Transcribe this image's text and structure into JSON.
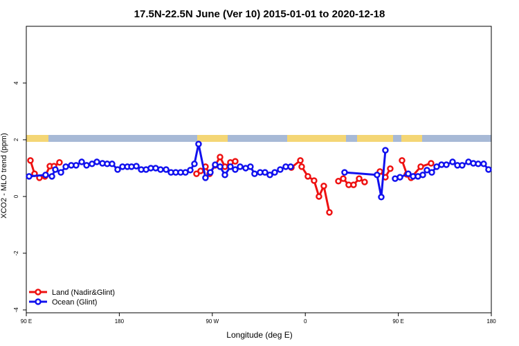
{
  "chart_data": {
    "type": "line",
    "title": "17.5N-22.5N June (Ver 10)   2015-01-01 to 2020-12-18",
    "x_label": "Longitude (deg E)",
    "y_label": "XCO2 - MLO trend (ppm)",
    "xlim": [
      90,
      540
    ],
    "ylim": [
      -4.1,
      6
    ],
    "xticks": [
      {
        "value": 90,
        "label": "90 E"
      },
      180,
      {
        "value": 270,
        "label": "90 W"
      },
      {
        "value": 360,
        "label": "0"
      },
      {
        "value": 450,
        "label": "90 E"
      },
      {
        "value": 540,
        "label": "180"
      }
    ],
    "yticks": [
      -4,
      -2,
      0,
      2,
      4
    ],
    "legend": "lower left",
    "series": [
      {
        "name": "Land (Nadir&Glint)",
        "color": "#ee1111",
        "x": [
          94.0,
          98.0,
          102.7,
          108.1,
          112.8,
          116.8,
          122.1,
          null,
          254.7,
          258.7,
          263.4,
          267.4,
          272.8,
          277.5,
          282.2,
          287.5,
          292.2,
          null,
          346.5,
          355.2,
          356.5,
          362.5,
          368.5,
          373.2,
          377.9,
          383.3,
          null,
          392.0,
          396.7,
          402.0,
          406.7,
          412.1,
          417.4,
          null,
          432.2,
          437.5,
          442.2,
          null,
          453.6,
          458.3,
          462.3,
          471.7,
          481.7
        ],
        "values": [
          1.27,
          0.8,
          0.66,
          0.71,
          1.07,
          1.07,
          1.2,
          null,
          0.8,
          0.9,
          1.05,
          0.8,
          1.1,
          1.39,
          1.05,
          1.2,
          1.24,
          null,
          1.02,
          1.27,
          1.05,
          0.71,
          0.56,
          0,
          0.37,
          -0.56,
          null,
          0.54,
          0.63,
          0.41,
          0.41,
          0.63,
          0.51,
          null,
          0.88,
          0.68,
          0.98,
          null,
          1.27,
          0.78,
          0.66,
          1.05,
          1.17
        ]
      },
      {
        "name": "Ocean (Glint)",
        "color": "#1111ee",
        "x": [
          92.7,
          108.7,
          114.8,
          118.1,
          123.5,
          128.2,
          133.5,
          138.2,
          143.6,
          148.3,
          153.6,
          158.3,
          163.7,
          168.3,
          173.0,
          178.4,
          183.1,
          187.8,
          191.8,
          196.5,
          201.2,
          205.9,
          210.5,
          215.2,
          219.9,
          225.3,
          230.0,
          234.6,
          239.3,
          244.0,
          248.7,
          252.7,
          256.7,
          263.4,
          268.1,
          272.8,
          277.5,
          282.2,
          287.5,
          292.2,
          296.9,
          302.3,
          306.9,
          310.9,
          316.3,
          321.0,
          325.7,
          330.4,
          335.7,
          341.1,
          345.8,
          null,
          398.0,
          429.4,
          433.5,
          437.5,
          null,
          446.9,
          451.6,
          459.6,
          464.3,
          469.0,
          473.7,
          477.7,
          482.4,
          487.1,
          491.8,
          496.5,
          502.5,
          507.2,
          511.8,
          517.9,
          522.6,
          527.3,
          532.6,
          537.3
        ],
        "values": [
          0.71,
          0.76,
          0.71,
          0.95,
          0.85,
          1.05,
          1.1,
          1.1,
          1.22,
          1.1,
          1.15,
          1.22,
          1.17,
          1.15,
          1.15,
          0.95,
          1.05,
          1.05,
          1.05,
          1.07,
          0.95,
          0.95,
          1.0,
          1.0,
          0.95,
          0.95,
          0.85,
          0.85,
          0.85,
          0.85,
          0.93,
          1.15,
          1.85,
          0.66,
          0.85,
          1.12,
          1.05,
          0.76,
          1.05,
          0.95,
          1.05,
          1.0,
          1.05,
          0.8,
          0.85,
          0.85,
          0.76,
          0.85,
          0.95,
          1.05,
          1.05,
          null,
          0.85,
          0.76,
          -0.02,
          1.63,
          null,
          0.63,
          0.68,
          0.8,
          0.71,
          0.71,
          0.76,
          0.93,
          0.85,
          1.05,
          1.12,
          1.12,
          1.22,
          1.1,
          1.1,
          1.22,
          1.17,
          1.15,
          1.15,
          0.95
        ]
      }
    ]
  }
}
